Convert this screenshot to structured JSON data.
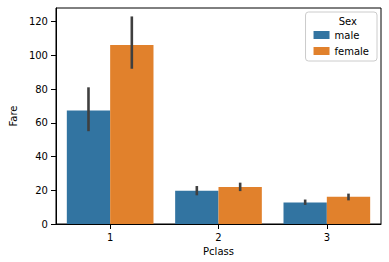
{
  "chart_data": {
    "type": "bar",
    "x_label": "Pclass",
    "y_label": "Fare",
    "legend_title": "Sex",
    "categories": [
      "1",
      "2",
      "3"
    ],
    "series": [
      {
        "name": "male",
        "color": "#3274a1",
        "values": [
          67.2,
          19.7,
          12.7
        ],
        "error_low": [
          55,
          17,
          11.3
        ],
        "error_high": [
          81,
          22.5,
          14.5
        ]
      },
      {
        "name": "female",
        "color": "#e1812c",
        "values": [
          106.1,
          22.0,
          16.1
        ],
        "error_low": [
          92,
          19.5,
          14
        ],
        "error_high": [
          123,
          24.5,
          18
        ]
      }
    ],
    "ylim": [
      0,
      128
    ],
    "yticks": [
      0,
      20,
      40,
      60,
      80,
      100,
      120
    ],
    "grid": false,
    "legend": "upper right"
  }
}
